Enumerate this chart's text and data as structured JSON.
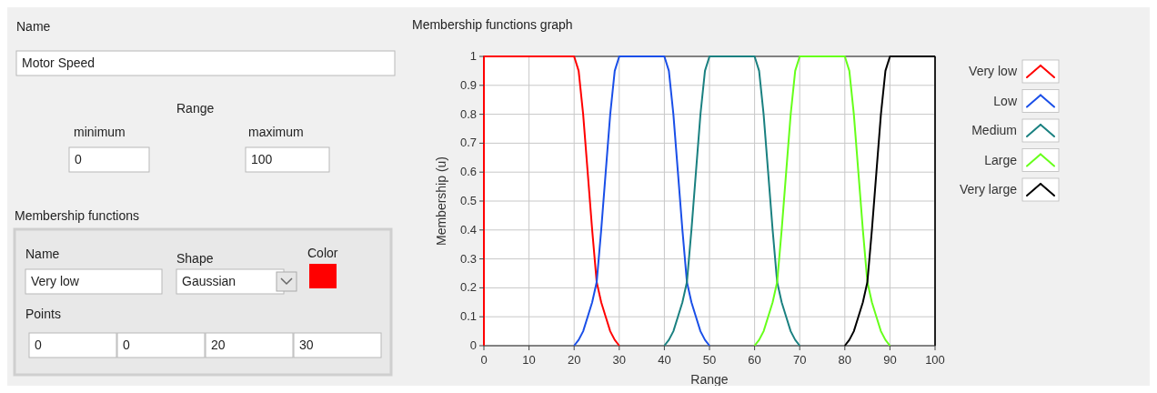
{
  "chart_data": [
    {
      "type": "other",
      "annotations": [
        "Name",
        "Motor Speed",
        "Range",
        "minimum",
        "0",
        "maximum",
        "100",
        "Membership functions",
        "Name",
        "Shape",
        "Color",
        "Very low",
        "Gaussian",
        "Points",
        "0",
        "0",
        "20",
        "30"
      ]
    },
    {
      "type": "line",
      "title": "Membership functions graph",
      "xlabel": "Range",
      "ylabel": "Membership (u)",
      "xlim": [
        0,
        100
      ],
      "ylim": [
        0,
        1
      ],
      "xticks": [
        0,
        10,
        20,
        30,
        40,
        50,
        60,
        70,
        80,
        90,
        100
      ],
      "yticks": [
        0,
        0.1,
        0.2,
        0.3,
        0.4,
        0.5,
        0.6,
        0.7,
        0.8,
        0.9,
        1
      ],
      "grid": true,
      "legend": "right",
      "marker": "none",
      "line_style": "solid",
      "series": [
        {
          "name": "Very low",
          "color": "#ff0000",
          "x": [
            0,
            0,
            20,
            21,
            22,
            23,
            24,
            25,
            26,
            27,
            28,
            29,
            30
          ],
          "values": [
            0,
            1,
            1,
            0.95,
            0.8,
            0.6,
            0.4,
            0.22,
            0.15,
            0.1,
            0.05,
            0.02,
            0
          ]
        },
        {
          "name": "Low",
          "color": "#1a4fe8",
          "x": [
            20,
            21,
            22,
            23,
            24,
            25,
            26,
            27,
            28,
            29,
            30,
            40,
            41,
            42,
            43,
            44,
            45,
            46,
            47,
            48,
            49,
            50
          ],
          "values": [
            0,
            0.02,
            0.05,
            0.1,
            0.15,
            0.22,
            0.4,
            0.6,
            0.8,
            0.95,
            1,
            1,
            0.95,
            0.8,
            0.6,
            0.4,
            0.22,
            0.15,
            0.1,
            0.05,
            0.02,
            0
          ]
        },
        {
          "name": "Medium",
          "color": "#1a8080",
          "x": [
            40,
            41,
            42,
            43,
            44,
            45,
            46,
            47,
            48,
            49,
            50,
            60,
            61,
            62,
            63,
            64,
            65,
            66,
            67,
            68,
            69,
            70
          ],
          "values": [
            0,
            0.02,
            0.05,
            0.1,
            0.15,
            0.22,
            0.4,
            0.6,
            0.8,
            0.95,
            1,
            1,
            0.95,
            0.8,
            0.6,
            0.4,
            0.22,
            0.15,
            0.1,
            0.05,
            0.02,
            0
          ]
        },
        {
          "name": "Large",
          "color": "#66ff1a",
          "x": [
            60,
            61,
            62,
            63,
            64,
            65,
            66,
            67,
            68,
            69,
            70,
            80,
            81,
            82,
            83,
            84,
            85,
            86,
            87,
            88,
            89,
            90
          ],
          "values": [
            0,
            0.02,
            0.05,
            0.1,
            0.15,
            0.22,
            0.4,
            0.6,
            0.8,
            0.95,
            1,
            1,
            0.95,
            0.8,
            0.6,
            0.4,
            0.22,
            0.15,
            0.1,
            0.05,
            0.02,
            0
          ]
        },
        {
          "name": "Very large",
          "color": "#000000",
          "x": [
            80,
            81,
            82,
            83,
            84,
            85,
            86,
            87,
            88,
            89,
            90,
            100
          ],
          "values": [
            0,
            0.02,
            0.05,
            0.1,
            0.15,
            0.22,
            0.4,
            0.6,
            0.8,
            0.95,
            1,
            1
          ]
        }
      ]
    }
  ]
}
